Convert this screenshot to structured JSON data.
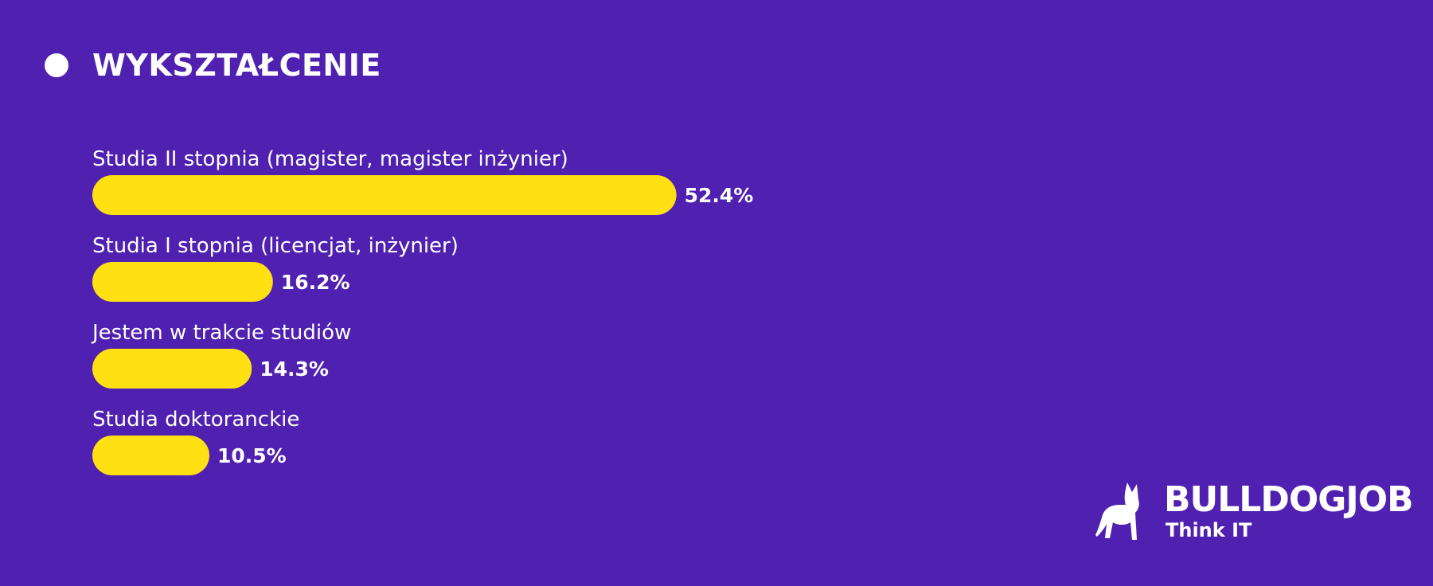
{
  "chart_data": {
    "type": "bar",
    "orientation": "horizontal",
    "title": "WYKSZTAŁCENIE",
    "categories": [
      "Studia II stopnia (magister, magister inżynier)",
      "Studia I stopnia (licencjat, inżynier)",
      "Jestem w trakcie studiów",
      "Studia doktoranckie"
    ],
    "values": [
      52.4,
      16.2,
      14.3,
      10.5
    ],
    "value_labels": [
      "52.4%",
      "16.2%",
      "14.3%",
      "10.5%"
    ],
    "unit": "%",
    "xlim": [
      0,
      100
    ],
    "grid": false,
    "legend": "none",
    "bar_color": "#ffe012",
    "background_color": "#5020b0",
    "text_color": "#ffffff"
  },
  "branding": {
    "logo_icon": "bulldog-icon",
    "name": "BULLDOGJOB",
    "tagline": "Think IT"
  }
}
